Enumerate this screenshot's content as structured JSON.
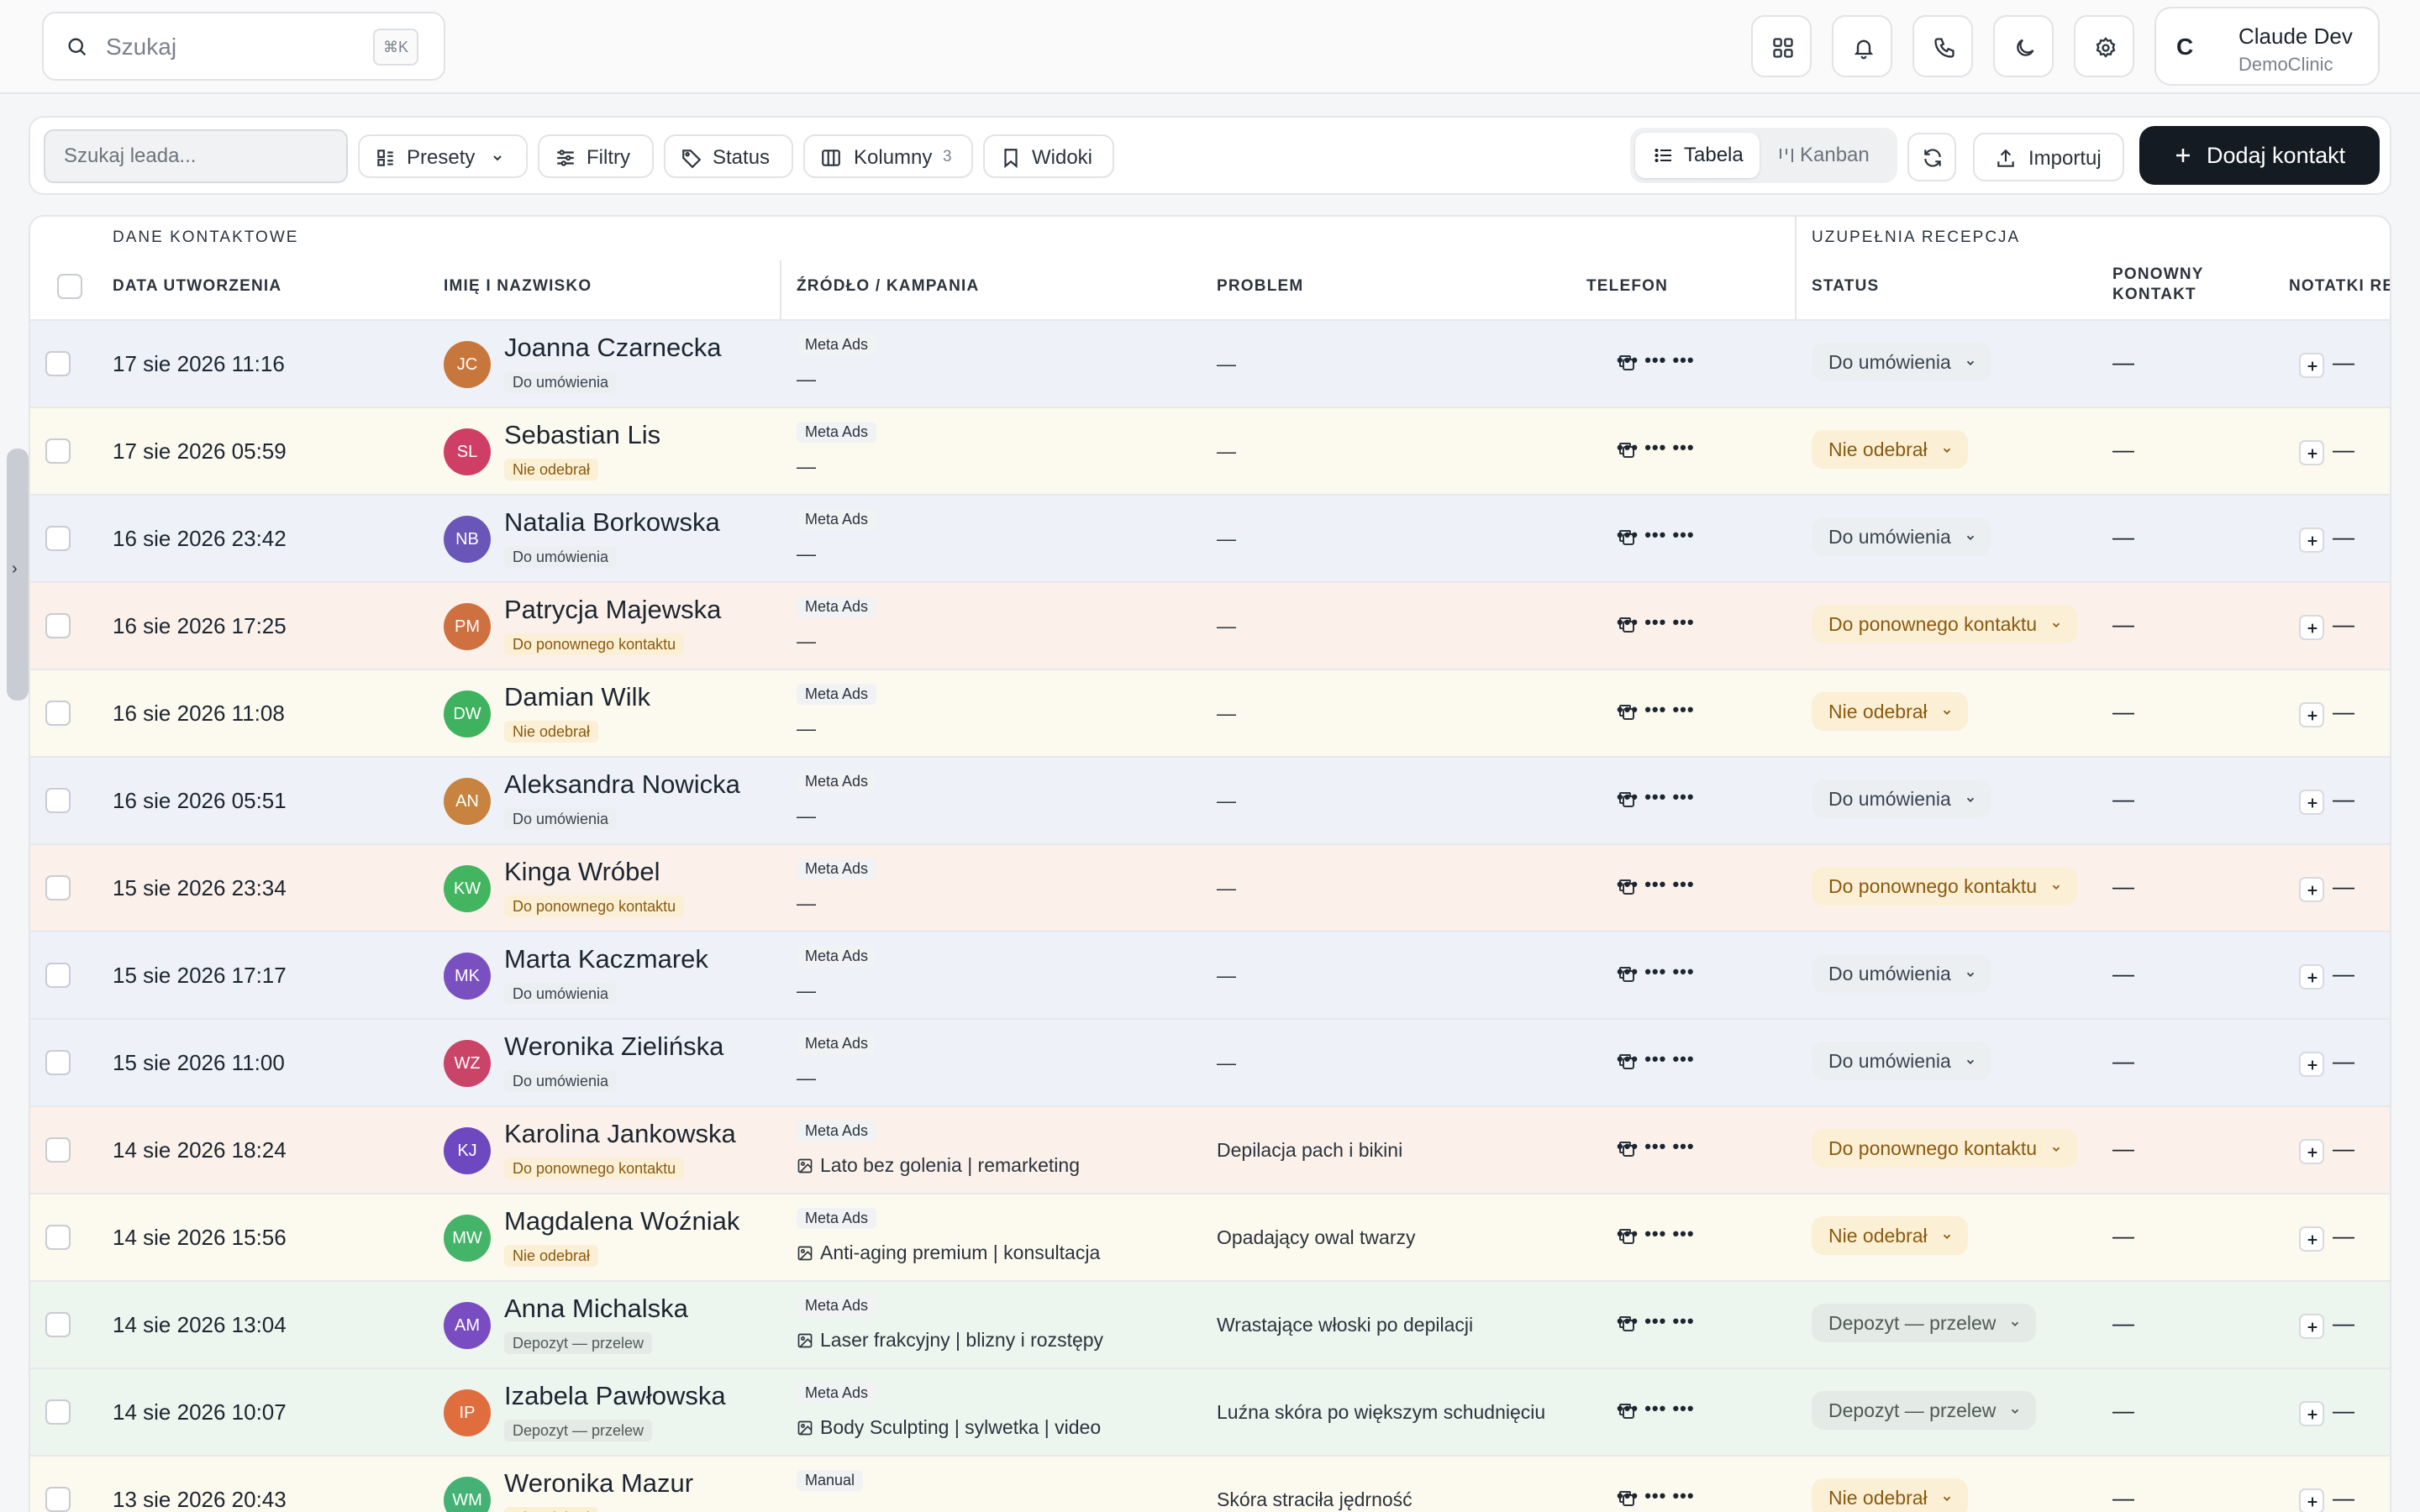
{
  "topbar": {
    "search_placeholder": "Szukaj",
    "search_shortcut": "⌘K",
    "user": {
      "initial": "C",
      "name": "Claude Dev",
      "org": "DemoClinic"
    }
  },
  "toolbar": {
    "lead_search_placeholder": "Szukaj leada...",
    "presets_label": "Presety",
    "filters_label": "Filtry",
    "status_label": "Status",
    "columns_label": "Kolumny",
    "columns_count": "3",
    "views_label": "Widoki",
    "view_table": "Tabela",
    "view_kanban": "Kanban",
    "import_label": "Importuj",
    "add_contact_label": "Dodaj kontakt"
  },
  "table": {
    "group_contact": "DANE KONTAKTOWE",
    "group_reception": "UZUPEŁNIA RECEPCJA",
    "columns": {
      "created": "DATA UTWORZENIA",
      "name": "IMIĘ I NAZWISKO",
      "source": "ŹRÓDŁO / KAMPANIA",
      "problem": "PROBLEM",
      "phone": "TELEFON",
      "status": "STATUS",
      "recontact_1": "PONOWNY",
      "recontact_2": "KONTAKT",
      "notes": "NOTATKI RE"
    },
    "rows": [
      {
        "date": "17 sie 2026 11:16",
        "initials": "JC",
        "name": "Joanna Czarnecka",
        "status": "Do umówienia",
        "source": "Meta Ads",
        "campaign": "—",
        "problem": "—",
        "phone": "••• ••• •••",
        "recontact": "—",
        "notes": "—"
      },
      {
        "date": "17 sie 2026 05:59",
        "initials": "SL",
        "name": "Sebastian Lis",
        "status": "Nie odebrał",
        "source": "Meta Ads",
        "campaign": "—",
        "problem": "—",
        "phone": "••• ••• •••",
        "recontact": "—",
        "notes": "—"
      },
      {
        "date": "16 sie 2026 23:42",
        "initials": "NB",
        "name": "Natalia Borkowska",
        "status": "Do umówienia",
        "source": "Meta Ads",
        "campaign": "—",
        "problem": "—",
        "phone": "••• ••• •••",
        "recontact": "—",
        "notes": "—"
      },
      {
        "date": "16 sie 2026 17:25",
        "initials": "PM",
        "name": "Patrycja Majewska",
        "status": "Do ponownego kontaktu",
        "source": "Meta Ads",
        "campaign": "—",
        "problem": "—",
        "phone": "••• ••• •••",
        "recontact": "—",
        "notes": "—"
      },
      {
        "date": "16 sie 2026 11:08",
        "initials": "DW",
        "name": "Damian Wilk",
        "status": "Nie odebrał",
        "source": "Meta Ads",
        "campaign": "—",
        "problem": "—",
        "phone": "••• ••• •••",
        "recontact": "—",
        "notes": "—"
      },
      {
        "date": "16 sie 2026 05:51",
        "initials": "AN",
        "name": "Aleksandra Nowicka",
        "status": "Do umówienia",
        "source": "Meta Ads",
        "campaign": "—",
        "problem": "—",
        "phone": "••• ••• •••",
        "recontact": "—",
        "notes": "—"
      },
      {
        "date": "15 sie 2026 23:34",
        "initials": "KW",
        "name": "Kinga Wróbel",
        "status": "Do ponownego kontaktu",
        "source": "Meta Ads",
        "campaign": "—",
        "problem": "—",
        "phone": "••• ••• •••",
        "recontact": "—",
        "notes": "—"
      },
      {
        "date": "15 sie 2026 17:17",
        "initials": "MK",
        "name": "Marta Kaczmarek",
        "status": "Do umówienia",
        "source": "Meta Ads",
        "campaign": "—",
        "problem": "—",
        "phone": "••• ••• •••",
        "recontact": "—",
        "notes": "—"
      },
      {
        "date": "15 sie 2026 11:00",
        "initials": "WZ",
        "name": "Weronika Zielińska",
        "status": "Do umówienia",
        "source": "Meta Ads",
        "campaign": "—",
        "problem": "—",
        "phone": "••• ••• •••",
        "recontact": "—",
        "notes": "—"
      },
      {
        "date": "14 sie 2026 18:24",
        "initials": "KJ",
        "name": "Karolina Jankowska",
        "status": "Do ponownego kontaktu",
        "source": "Meta Ads",
        "campaign": "Lato bez golenia | remarketing",
        "problem": "Depilacja pach i bikini",
        "phone": "••• ••• •••",
        "recontact": "—",
        "notes": "—"
      },
      {
        "date": "14 sie 2026 15:56",
        "initials": "MW",
        "name": "Magdalena Woźniak",
        "status": "Nie odebrał",
        "source": "Meta Ads",
        "campaign": "Anti-aging premium | konsultacja",
        "problem": "Opadający owal twarzy",
        "phone": "••• ••• •••",
        "recontact": "—",
        "notes": "—"
      },
      {
        "date": "14 sie 2026 13:04",
        "initials": "AM",
        "name": "Anna Michalska",
        "status": "Depozyt — przelew",
        "source": "Meta Ads",
        "campaign": "Laser frakcyjny | blizny i rozstępy",
        "problem": "Wrastające włoski po depilacji",
        "phone": "••• ••• •••",
        "recontact": "—",
        "notes": "—"
      },
      {
        "date": "14 sie 2026 10:07",
        "initials": "IP",
        "name": "Izabela Pawłowska",
        "status": "Depozyt — przelew",
        "source": "Meta Ads",
        "campaign": "Body Sculpting | sylwetka | video",
        "problem": "Luźna skóra po większym schudnięciu",
        "phone": "••• ••• •••",
        "recontact": "—",
        "notes": "—"
      },
      {
        "date": "13 sie 2026 20:43",
        "initials": "WM",
        "name": "Weronika Mazur",
        "status": "Nie odebrał",
        "source": "Manual",
        "campaign": "—",
        "problem": "Skóra straciła jędrność",
        "phone": "••• ••• •••",
        "recontact": "—",
        "notes": "—"
      }
    ]
  },
  "colors": {
    "do_umowienia_row": "#eef2f8",
    "nie_odebral_row": "#fcf9ee",
    "ponowny_row": "#fbf1ea",
    "depozyt_row": "#edf5ef",
    "do_umowienia_pill": "#eceff2",
    "nie_odebral_pill": "#fbefd5",
    "ponowny_pill": "#fbefd5",
    "depozyt_pill": "#e4ebe6",
    "avatars": {
      "JC": "#c7773c",
      "SL": "#cf3f65",
      "NB": "#6a55b8",
      "PM": "#cf7040",
      "DW": "#3fb25f",
      "AN": "#c7833f",
      "KW": "#43b560",
      "MK": "#7a4fc0",
      "WZ": "#c94467",
      "KJ": "#6d48c0",
      "MW": "#44b468",
      "AM": "#7a4cc2",
      "IP": "#e06d3e",
      "WM": "#44b274"
    }
  }
}
